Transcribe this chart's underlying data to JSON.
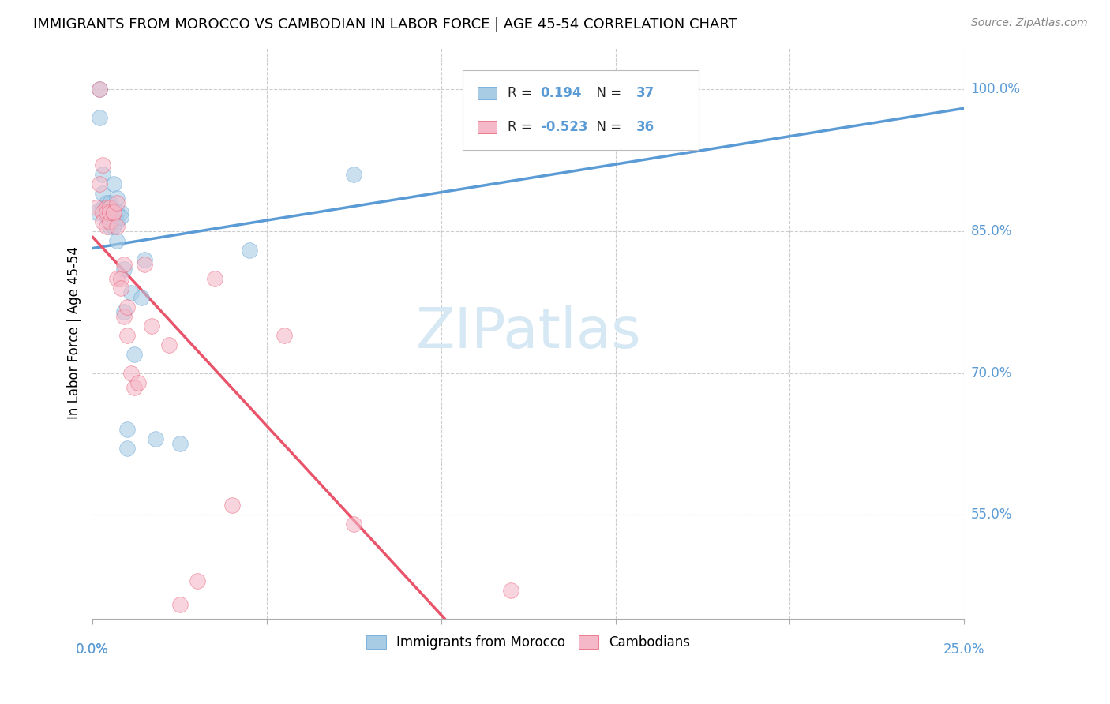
{
  "title": "IMMIGRANTS FROM MOROCCO VS CAMBODIAN IN LABOR FORCE | AGE 45-54 CORRELATION CHART",
  "source": "Source: ZipAtlas.com",
  "ylabel": "In Labor Force | Age 45-54",
  "yticks": [
    0.55,
    0.7,
    0.85,
    1.0
  ],
  "ytick_labels": [
    "55.0%",
    "70.0%",
    "85.0%",
    "100.0%"
  ],
  "xlim": [
    0.0,
    0.25
  ],
  "ylim": [
    0.44,
    1.045
  ],
  "legend_r_blue": "0.194",
  "legend_n_blue": "37",
  "legend_r_pink": "-0.523",
  "legend_n_pink": "36",
  "blue_color": "#a8cce4",
  "pink_color": "#f4b8c8",
  "blue_line_color": "#5b9bd5",
  "pink_line_color": "#e9546b",
  "watermark_color": "#d5e8f3",
  "morocco_x": [
    0.001,
    0.002,
    0.002,
    0.003,
    0.003,
    0.003,
    0.004,
    0.004,
    0.004,
    0.004,
    0.005,
    0.005,
    0.005,
    0.005,
    0.005,
    0.006,
    0.006,
    0.006,
    0.007,
    0.007,
    0.007,
    0.007,
    0.008,
    0.008,
    0.009,
    0.009,
    0.01,
    0.01,
    0.011,
    0.012,
    0.014,
    0.015,
    0.018,
    0.025,
    0.045,
    0.075,
    0.155
  ],
  "morocco_y": [
    0.87,
    0.97,
    1.0,
    0.875,
    0.89,
    0.91,
    0.865,
    0.875,
    0.88,
    0.87,
    0.855,
    0.87,
    0.88,
    0.86,
    0.875,
    0.855,
    0.87,
    0.9,
    0.885,
    0.87,
    0.86,
    0.84,
    0.87,
    0.865,
    0.765,
    0.81,
    0.62,
    0.64,
    0.785,
    0.72,
    0.78,
    0.82,
    0.63,
    0.625,
    0.83,
    0.91,
    1.0
  ],
  "cambodian_x": [
    0.001,
    0.002,
    0.002,
    0.003,
    0.003,
    0.003,
    0.004,
    0.004,
    0.004,
    0.005,
    0.005,
    0.005,
    0.006,
    0.006,
    0.007,
    0.007,
    0.007,
    0.008,
    0.008,
    0.009,
    0.009,
    0.01,
    0.01,
    0.011,
    0.012,
    0.013,
    0.015,
    0.017,
    0.022,
    0.025,
    0.03,
    0.035,
    0.04,
    0.055,
    0.075,
    0.12
  ],
  "cambodian_y": [
    0.875,
    1.0,
    0.9,
    0.92,
    0.87,
    0.86,
    0.875,
    0.87,
    0.855,
    0.875,
    0.86,
    0.87,
    0.87,
    0.87,
    0.8,
    0.855,
    0.88,
    0.8,
    0.79,
    0.815,
    0.76,
    0.77,
    0.74,
    0.7,
    0.685,
    0.69,
    0.815,
    0.75,
    0.73,
    0.455,
    0.48,
    0.8,
    0.56,
    0.74,
    0.54,
    0.47
  ]
}
